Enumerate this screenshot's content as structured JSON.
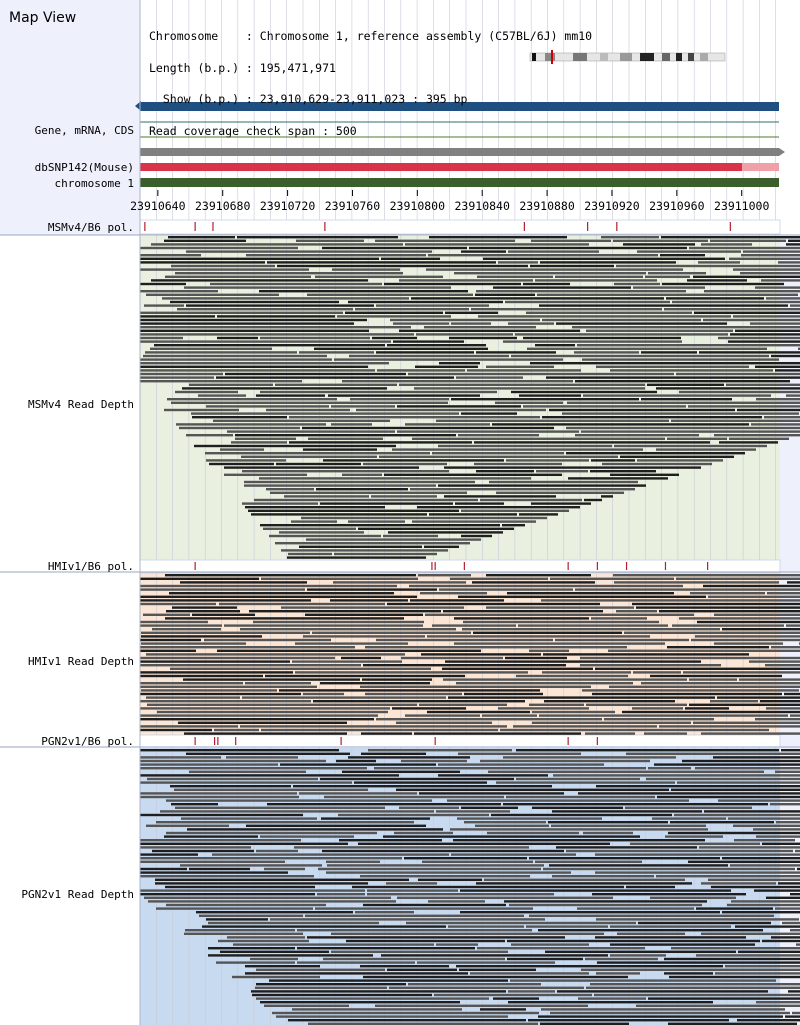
{
  "map_title": "Map View",
  "info": {
    "line1": "Chromosome    : Chromosome 1, reference assembly (C57BL/6J) mm10",
    "line2": "Length (b.p.) : 195,471,971",
    "line3": "  Show (b.p.) : 23,910,629-23,911,023 : 395 bp",
    "line4": "Read coverage check span : 500"
  },
  "tracks": {
    "gene_label": "Gene, mRNA, CDS",
    "dbsnp_label": "dbSNP142(Mouse)",
    "chrom_label": "chromosome 1",
    "msm_pol_label": "MSMv4/B6 pol.",
    "msm_depth_label": "MSMv4 Read Depth",
    "hmi_pol_label": "HMIv1/B6 pol.",
    "hmi_depth_label": "HMIv1 Read Depth",
    "pgn_pol_label": "PGN2v1/B6 pol.",
    "pgn_depth_label": "PGN2v1 Read Depth"
  },
  "ruler": {
    "ticks": [
      "23910640",
      "23910680",
      "23910720",
      "23910760",
      "23910800",
      "23910840",
      "23910880",
      "23910920",
      "23910960",
      "23911000"
    ]
  },
  "colors": {
    "gene_bar": "#1f4f80",
    "snp_bar": "#d9334a",
    "snp_bar_light": "#f0a0a8",
    "chrom_bar": "#3a5e2c",
    "gray_bar": "#808080",
    "msm_bg": "#eaf0e0",
    "hmi_bg": "#fbe6d6",
    "pgn_bg": "#c8daf0",
    "read_dark": "#1e1e1e",
    "read_mid": "#555555",
    "pol_mark": "#b02030"
  },
  "polymorphisms": {
    "msm": [
      23910632,
      23910663,
      23910674,
      23910743,
      23910866,
      23910905,
      23910923,
      23910993
    ],
    "hmi": [
      23910663,
      23910809,
      23910811,
      23910829,
      23910893,
      23910911,
      23910929,
      23910953,
      23910979
    ],
    "pgn": [
      23910663,
      23910675,
      23910677,
      23910688,
      23910753,
      23910811,
      23910893,
      23910911
    ]
  }
}
